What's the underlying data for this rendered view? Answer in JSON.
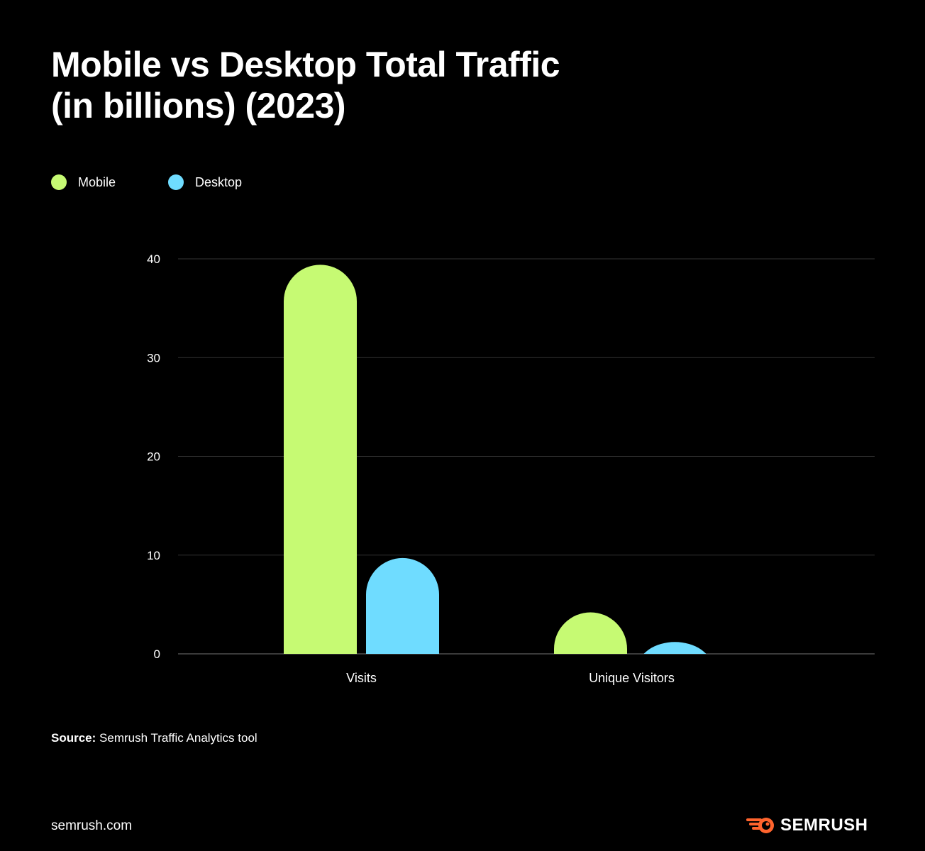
{
  "chart_data": {
    "type": "bar",
    "title": "Mobile vs Desktop Total Traffic (in billions) (2023)",
    "title_lines": [
      "Mobile vs Desktop Total Traffic",
      "(in billions) (2023)"
    ],
    "categories": [
      "Visits",
      "Unique Visitors"
    ],
    "series": [
      {
        "name": "Mobile",
        "color": "#c6fa73",
        "values": [
          39.4,
          4.2
        ]
      },
      {
        "name": "Desktop",
        "color": "#6fdcff",
        "values": [
          9.7,
          1.2
        ]
      }
    ],
    "yticks": [
      0,
      10,
      20,
      30,
      40
    ],
    "ylim": [
      0,
      40
    ],
    "grid": true,
    "legend_position": "top-left",
    "xlabel": "",
    "ylabel": ""
  },
  "footer": {
    "source_label": "Source:",
    "source_text": " Semrush Traffic Analytics tool",
    "site": "semrush.com",
    "brand": "SEMRUSH",
    "brand_color": "#ff642d"
  }
}
